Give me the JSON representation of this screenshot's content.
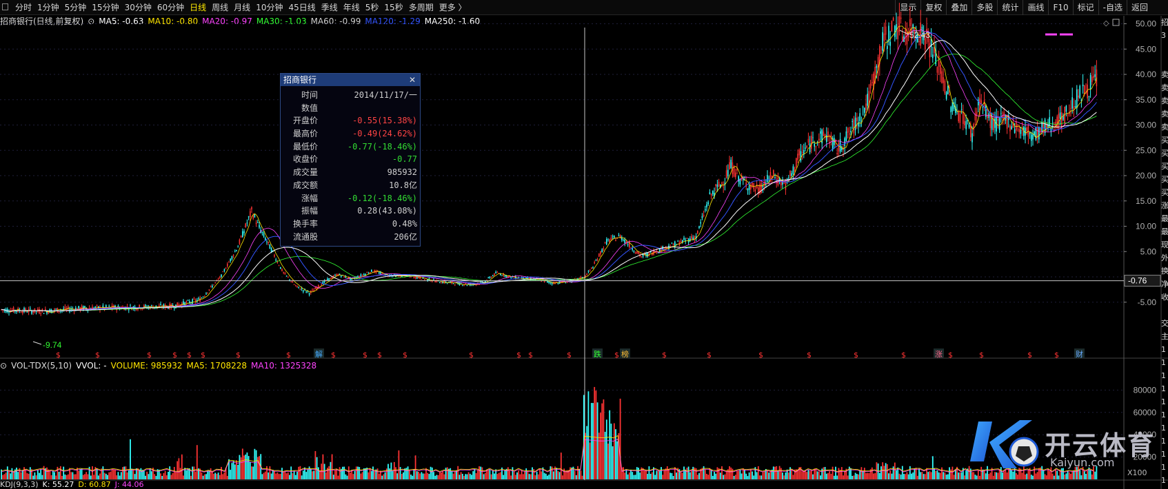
{
  "toolbar": {
    "periods": [
      "分时",
      "1分钟",
      "5分钟",
      "15分钟",
      "30分钟",
      "60分钟",
      "日线",
      "周线",
      "月线",
      "10分钟",
      "45日线",
      "季线",
      "年线",
      "5秒",
      "15秒",
      "多周期",
      "更多 〉"
    ],
    "active_period": "日线",
    "right_tools": [
      "显示",
      "复权",
      "叠加",
      "多股",
      "统计",
      "画线",
      "F10",
      "标记",
      "-自选"
    ],
    "back_label": "返回"
  },
  "main_chart": {
    "title": "招商银行(日线,前复权)",
    "ma": [
      {
        "label": "MA5: -0.63",
        "color": "#ffffff"
      },
      {
        "label": "MA10: -0.80",
        "color": "#ffe600"
      },
      {
        "label": "MA20: -0.97",
        "color": "#ff44ff"
      },
      {
        "label": "MA30: -1.03",
        "color": "#33ff33"
      },
      {
        "label": "MA60: -0.99",
        "color": "#cfcfcf"
      },
      {
        "label": "MA120: -1.29",
        "color": "#3355ff"
      },
      {
        "label": "MA250: -1.60",
        "color": "#ffffff"
      }
    ],
    "y_ticks": [
      "50.00",
      "45.00",
      "40.00",
      "35.00",
      "30.00",
      "25.00",
      "20.00",
      "15.00",
      "10.00",
      "5.00",
      "-5.00"
    ],
    "crosshair_value": "-0.76",
    "max_label": "52.43",
    "min_label": "-9.74",
    "event_markers": [
      "$",
      "$",
      "$",
      "$",
      "$",
      "$",
      "$",
      "$",
      "解",
      "$",
      "$",
      "$",
      "$",
      "$",
      "$",
      "$",
      "$",
      "跌",
      "$",
      "榜",
      "$",
      "$",
      "$",
      "$",
      "$",
      "$",
      "涨",
      "$",
      "$",
      "$",
      "$",
      "财"
    ]
  },
  "tooltip": {
    "title": "招商银行",
    "close_icon": "close-icon",
    "rows": [
      {
        "k": "时间",
        "v": "2014/11/17/一",
        "color": "#cfcfcf"
      },
      {
        "k": "数值",
        "v": "",
        "color": "#cfcfcf"
      },
      {
        "k": "开盘价",
        "v": "-0.55(15.38%)",
        "color": "#ff4444"
      },
      {
        "k": "最高价",
        "v": "-0.49(24.62%)",
        "color": "#ff4444"
      },
      {
        "k": "最低价",
        "v": "-0.77(-18.46%)",
        "color": "#33dd33"
      },
      {
        "k": "收盘价",
        "v": "-0.77",
        "color": "#33dd33"
      },
      {
        "k": "成交量",
        "v": "985932",
        "color": "#cfcfcf"
      },
      {
        "k": "成交额",
        "v": "10.8亿",
        "color": "#cfcfcf"
      },
      {
        "k": "涨幅",
        "v": "-0.12(-18.46%)",
        "color": "#33dd33"
      },
      {
        "k": "振幅",
        "v": "0.28(43.08%)",
        "color": "#cfcfcf"
      },
      {
        "k": "换手率",
        "v": "0.48%",
        "color": "#cfcfcf"
      },
      {
        "k": "流通股",
        "v": "206亿",
        "color": "#cfcfcf"
      }
    ]
  },
  "volume_panel": {
    "title": "VOL-TDX(5,10)",
    "items": [
      {
        "label": "VVOL: -",
        "color": "#ffffff"
      },
      {
        "label": "VOLUME: 985932",
        "color": "#ffe600"
      },
      {
        "label": "MA5: 1708228",
        "color": "#ffe600"
      },
      {
        "label": "MA10: 1325328",
        "color": "#ff44ff"
      }
    ],
    "y_ticks": [
      "80000",
      "60000",
      "40000",
      "20000"
    ],
    "unit": "X100"
  },
  "kdj_panel": {
    "title": "KDJ(9,3,3)",
    "items": [
      {
        "label": "K: 55.27",
        "color": "#ffffff"
      },
      {
        "label": "D: 60.87",
        "color": "#ffe600"
      },
      {
        "label": "J: 44.06",
        "color": "#ff44ff"
      }
    ]
  },
  "side_panel": {
    "chars": [
      "招",
      "3",
      "",
      "",
      "卖",
      "卖",
      "卖",
      "卖",
      "卖",
      "买",
      "买",
      "买",
      "买",
      "买",
      "涨",
      "最",
      "最",
      "现",
      "外",
      "换",
      "净",
      "收",
      "",
      "交",
      "主",
      "1",
      "1",
      "1",
      "1",
      "1",
      "1",
      "1",
      "1",
      "1",
      "1",
      "1"
    ]
  },
  "watermark": {
    "cn": "开云体育",
    "en": "Kaiyun.com"
  },
  "colors": {
    "up": "#ff3333",
    "down": "#33ffff",
    "axis": "#b0b0b0",
    "grid": "#1f1f3a",
    "crosshair": "#c8c8c8"
  }
}
